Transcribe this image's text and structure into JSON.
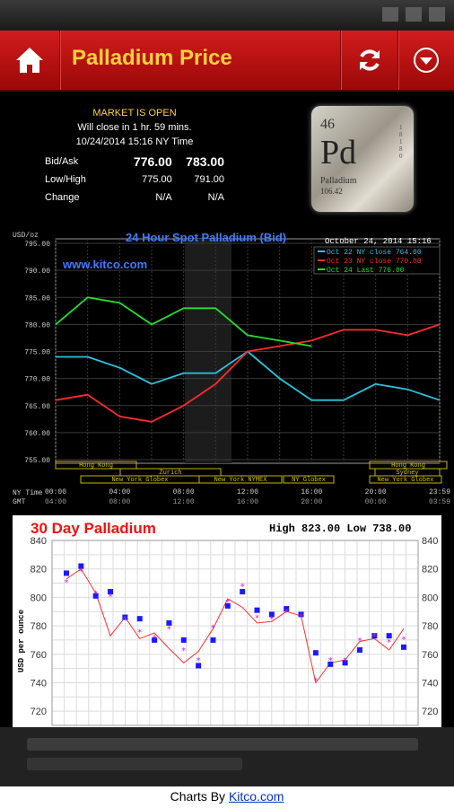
{
  "app": {
    "title": "Palladium Price"
  },
  "quote": {
    "market_status": "MARKET IS OPEN",
    "close_info": "Will close in 1 hr. 59 mins.",
    "time_info": "10/24/2014 15:16 NY Time",
    "rows": [
      {
        "label": "Bid/Ask",
        "v1": "776.00",
        "v2": "783.00"
      },
      {
        "label": "Low/High",
        "v1": "775.00",
        "v2": "791.00"
      },
      {
        "label": "Change",
        "v1": "N/A",
        "v2": "N/A"
      }
    ]
  },
  "element_tile": {
    "number": "46",
    "symbol": "Pd",
    "name": "Palladium",
    "mass": "106.42"
  },
  "chart24": {
    "title": "24 Hour Spot Palladium (Bid)",
    "date_stamp": "October 24, 2014 15:16",
    "unit": "USD/oz",
    "watermark": "www.kitco.com",
    "time_axis_label": "NY Time",
    "gmt_label": "GMT",
    "legend": [
      {
        "text": "Oct 22 NY close 764.00",
        "color": "#29c4e0"
      },
      {
        "text": "Oct 23 NY close 770.00",
        "color": "#ff2a2a"
      },
      {
        "text": "Oct 24 Last 776.00",
        "color": "#22e02a"
      }
    ],
    "ny_ticks": [
      "00:00",
      "04:00",
      "08:00",
      "12:00",
      "16:00",
      "20:00",
      "23:59"
    ],
    "gmt_ticks": [
      "04:00",
      "08:00",
      "12:00",
      "16:00",
      "20:00",
      "00:00",
      "03:59"
    ],
    "y_ticks": [
      "795.00",
      "790.00",
      "785.00",
      "780.00",
      "775.00",
      "770.00",
      "765.00",
      "760.00",
      "755.00"
    ],
    "markets": [
      "Hong Kong",
      "Hong Kong",
      "Zurich",
      "New York Globex",
      "New York NYMEX",
      "NY Globex",
      "Sydney",
      "New York Globex"
    ]
  },
  "chart30": {
    "title": "30 Day Palladium",
    "high_low": "High 823.00 Low 738.00",
    "ylabel": "USD per ounce"
  },
  "footer": {
    "prefix": "Charts By ",
    "link": "Kitco.com"
  },
  "colors": {
    "accent_red": "#c01010",
    "title_yellow": "#ffd23a",
    "series_cyan": "#29c4e0",
    "series_red": "#ff2a2a",
    "series_green": "#22e02a",
    "daily_line": "#ff3030",
    "daily_square": "#1a1aff",
    "daily_star": "#cc22cc"
  },
  "chart_data": [
    {
      "type": "line",
      "title": "24 Hour Spot Palladium (Bid)",
      "ylabel": "USD/oz",
      "ylim": [
        755,
        795
      ],
      "x": [
        0,
        2,
        4,
        6,
        8,
        10,
        12,
        14,
        16,
        18,
        20,
        22,
        24
      ],
      "series": [
        {
          "name": "Oct 22 NY close 764.00",
          "values": [
            774,
            774,
            772,
            769,
            771,
            771,
            775,
            770,
            766,
            766,
            769,
            768,
            766
          ]
        },
        {
          "name": "Oct 23 NY close 770.00",
          "values": [
            766,
            767,
            763,
            762,
            765,
            769,
            775,
            776,
            777,
            779,
            779,
            778,
            780
          ]
        },
        {
          "name": "Oct 24 Last 776.00",
          "values": [
            780,
            785,
            784,
            780,
            783,
            783,
            778,
            777,
            776,
            null,
            null,
            null,
            null
          ]
        }
      ],
      "grid": true,
      "legend": "top-right"
    },
    {
      "type": "line",
      "title": "30 Day Palladium",
      "ylabel": "USD per ounce",
      "ylim": [
        710,
        840
      ],
      "series": [
        {
          "values": [
            813,
            820,
            803,
            773,
            786,
            771,
            775,
            764,
            754,
            762,
            778,
            799,
            793,
            782,
            783,
            790,
            787,
            740,
            754,
            756,
            769,
            771,
            763,
            778
          ]
        }
      ],
      "markers_square": [
        817,
        822,
        801,
        804,
        786,
        785,
        770,
        782,
        770,
        752,
        770,
        794,
        804,
        791,
        788,
        792,
        788,
        761,
        753,
        754,
        763,
        773,
        773,
        765
      ],
      "markers_star": [
        811,
        819,
        803,
        801,
        785,
        776,
        772,
        778,
        763,
        756,
        779,
        797,
        808,
        786,
        785,
        790,
        787,
        742,
        756,
        756,
        770,
        773,
        769,
        771
      ],
      "grid": true
    }
  ]
}
